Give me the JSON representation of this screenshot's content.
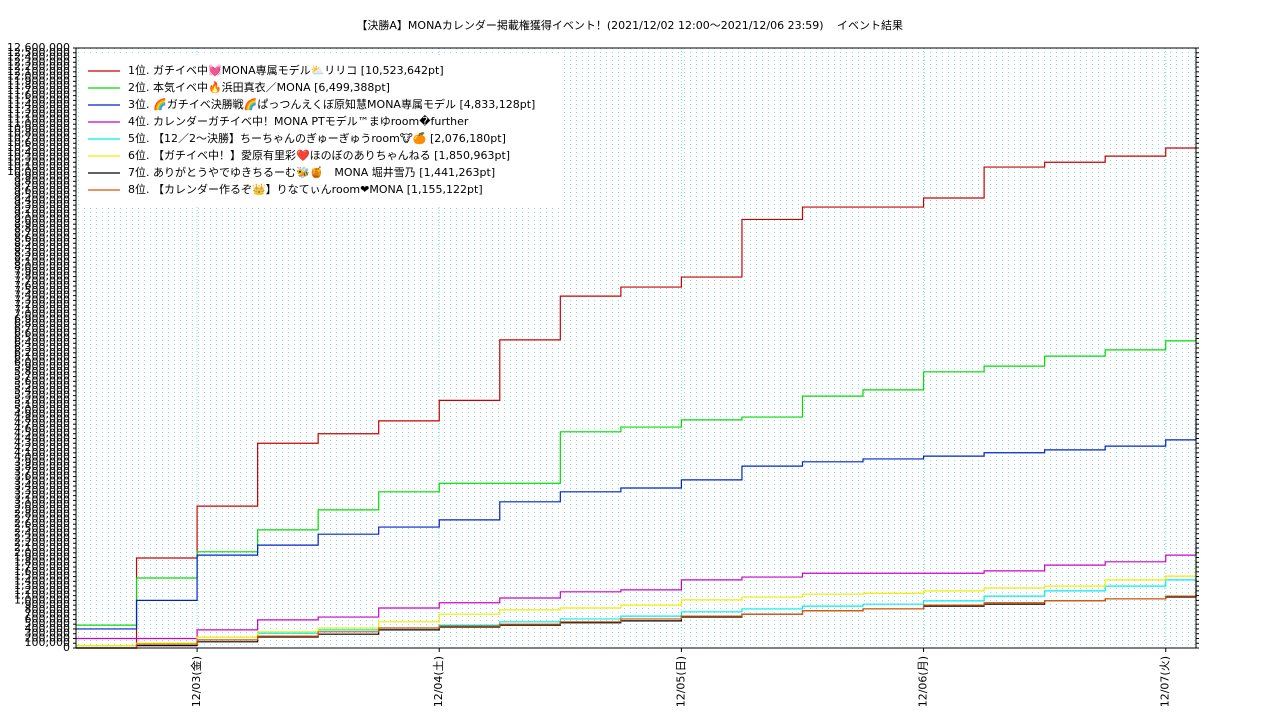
{
  "chart_data": {
    "type": "line",
    "step": true,
    "title": "【決勝A】MONAカレンダー掲載権獲得イベント！(2021/12/02 12:00〜2021/12/06 23:59)",
    "subtitle": "イベント結果",
    "x": [
      -0.5,
      -0.25,
      0,
      0.25,
      0.5,
      0.75,
      1,
      1.25,
      1.5,
      1.75,
      2,
      2.25,
      2.5,
      2.75,
      3,
      3.25,
      3.5,
      3.75,
      4,
      4.125
    ],
    "xlim": [
      -0.5,
      4.125
    ],
    "xticks": [
      {
        "value": 0,
        "label": "12/03(金)"
      },
      {
        "value": 1,
        "label": "12/04(土)"
      },
      {
        "value": 2,
        "label": "12/05(日)"
      },
      {
        "value": 3,
        "label": "12/06(月)"
      },
      {
        "value": 4,
        "label": "12/07(火)"
      }
    ],
    "ylim": [
      0,
      12600000
    ],
    "yticks": [
      0,
      {
        "value": 100000,
        "label": "100,000"
      },
      {
        "value": 200000,
        "label": "200,000"
      },
      {
        "value": 300000,
        "label": "300,000"
      },
      {
        "value": 400000,
        "label": "400,000"
      },
      {
        "value": 500000,
        "label": "500,000"
      },
      {
        "value": 600000,
        "label": "600,000"
      },
      {
        "value": 700000,
        "label": "700,000"
      },
      {
        "value": 800000,
        "label": "800,000"
      },
      {
        "value": 900000,
        "label": "900,000"
      },
      {
        "value": 1000000,
        "label": "1,000,000"
      },
      {
        "value": 1100000,
        "label": "1,100,000"
      },
      {
        "value": 1200000,
        "label": "1,200,000"
      },
      {
        "value": 1300000,
        "label": "1,300,000"
      },
      {
        "value": 1400000,
        "label": "1,400,000"
      },
      {
        "value": 1500000,
        "label": "1,500,000"
      },
      {
        "value": 1600000,
        "label": "1,600,000"
      },
      {
        "value": 1700000,
        "label": "1,700,000"
      },
      {
        "value": 1800000,
        "label": "1,800,000"
      },
      {
        "value": 1900000,
        "label": "1,900,000"
      },
      {
        "value": 2000000,
        "label": "2,000,000"
      },
      {
        "value": 2100000,
        "label": "2,100,000"
      },
      {
        "value": 2200000,
        "label": "2,200,000"
      },
      {
        "value": 2300000,
        "label": "2,300,000"
      },
      {
        "value": 2400000,
        "label": "2,400,000"
      },
      {
        "value": 2500000,
        "label": "2,500,000"
      },
      {
        "value": 2600000,
        "label": "2,600,000"
      },
      {
        "value": 2700000,
        "label": "2,700,000"
      },
      {
        "value": 2800000,
        "label": "2,800,000"
      },
      {
        "value": 2900000,
        "label": "2,900,000"
      },
      {
        "value": 3000000,
        "label": "3,000,000"
      },
      {
        "value": 3100000,
        "label": "3,100,000"
      },
      {
        "value": 3200000,
        "label": "3,200,000"
      },
      {
        "value": 3300000,
        "label": "3,300,000"
      },
      {
        "value": 3400000,
        "label": "3,400,000"
      },
      {
        "value": 3500000,
        "label": "3,500,000"
      },
      {
        "value": 3600000,
        "label": "3,600,000"
      },
      {
        "value": 3700000,
        "label": "3,700,000"
      },
      {
        "value": 3800000,
        "label": "3,800,000"
      },
      {
        "value": 3900000,
        "label": "3,900,000"
      },
      {
        "value": 4000000,
        "label": "4,000,000"
      },
      {
        "value": 4100000,
        "label": "4,100,000"
      },
      {
        "value": 4200000,
        "label": "4,200,000"
      },
      {
        "value": 4300000,
        "label": "4,300,000"
      },
      {
        "value": 4400000,
        "label": "4,400,000"
      },
      {
        "value": 4500000,
        "label": "4,500,000"
      },
      {
        "value": 4600000,
        "label": "4,600,000"
      },
      {
        "value": 4700000,
        "label": "4,700,000"
      },
      {
        "value": 4800000,
        "label": "4,800,000"
      },
      {
        "value": 4900000,
        "label": "4,900,000"
      },
      {
        "value": 5000000,
        "label": "5,000,000"
      },
      {
        "value": 5100000,
        "label": "5,100,000"
      },
      {
        "value": 5200000,
        "label": "5,200,000"
      },
      {
        "value": 5300000,
        "label": "5,300,000"
      },
      {
        "value": 5400000,
        "label": "5,400,000"
      },
      {
        "value": 5500000,
        "label": "5,500,000"
      },
      {
        "value": 5600000,
        "label": "5,600,000"
      },
      {
        "value": 5700000,
        "label": "5,700,000"
      },
      {
        "value": 5800000,
        "label": "5,800,000"
      },
      {
        "value": 5900000,
        "label": "5,900,000"
      },
      {
        "value": 6000000,
        "label": "6,000,000"
      },
      {
        "value": 6100000,
        "label": "6,100,000"
      },
      {
        "value": 6200000,
        "label": "6,200,000"
      },
      {
        "value": 6300000,
        "label": "6,300,000"
      },
      {
        "value": 6400000,
        "label": "6,400,000"
      },
      {
        "value": 6500000,
        "label": "6,500,000"
      },
      {
        "value": 6600000,
        "label": "6,600,000"
      },
      {
        "value": 6700000,
        "label": "6,700,000"
      },
      {
        "value": 6800000,
        "label": "6,800,000"
      },
      {
        "value": 6900000,
        "label": "6,900,000"
      },
      {
        "value": 7000000,
        "label": "7,000,000"
      },
      {
        "value": 7100000,
        "label": "7,100,000"
      },
      {
        "value": 7200000,
        "label": "7,200,000"
      },
      {
        "value": 7300000,
        "label": "7,300,000"
      },
      {
        "value": 7400000,
        "label": "7,400,000"
      },
      {
        "value": 7500000,
        "label": "7,500,000"
      },
      {
        "value": 7600000,
        "label": "7,600,000"
      },
      {
        "value": 7700000,
        "label": "7,700,000"
      },
      {
        "value": 7800000,
        "label": "7,800,000"
      },
      {
        "value": 7900000,
        "label": "7,900,000"
      },
      {
        "value": 8000000,
        "label": "8,000,000"
      },
      {
        "value": 8100000,
        "label": "8,100,000"
      },
      {
        "value": 8200000,
        "label": "8,200,000"
      },
      {
        "value": 8300000,
        "label": "8,300,000"
      },
      {
        "value": 8400000,
        "label": "8,400,000"
      },
      {
        "value": 8500000,
        "label": "8,500,000"
      },
      {
        "value": 8600000,
        "label": "8,600,000"
      },
      {
        "value": 8700000,
        "label": "8,700,000"
      },
      {
        "value": 8800000,
        "label": "8,800,000"
      },
      {
        "value": 8900000,
        "label": "8,900,000"
      },
      {
        "value": 9000000,
        "label": "9,000,000"
      },
      {
        "value": 9100000,
        "label": "9,100,000"
      },
      {
        "value": 9200000,
        "label": "9,200,000"
      },
      {
        "value": 9300000,
        "label": "9,300,000"
      },
      {
        "value": 9400000,
        "label": "9,400,000"
      },
      {
        "value": 9500000,
        "label": "9,500,000"
      },
      {
        "value": 9600000,
        "label": "9,600,000"
      },
      {
        "value": 9700000,
        "label": "9,700,000"
      },
      {
        "value": 9800000,
        "label": "9,800,000"
      },
      {
        "value": 9900000,
        "label": "9,900,000"
      },
      {
        "value": 10000000,
        "label": "10,000,000"
      },
      {
        "value": 10100000,
        "label": "10,100,000"
      },
      {
        "value": 10200000,
        "label": "10,200,000"
      },
      {
        "value": 10300000,
        "label": "10,300,000"
      },
      {
        "value": 10400000,
        "label": "10,400,000"
      },
      {
        "value": 10500000,
        "label": "10,500,000"
      },
      {
        "value": 10600000,
        "label": "10,600,000"
      },
      {
        "value": 10700000,
        "label": "10,700,000"
      },
      {
        "value": 10800000,
        "label": "10,800,000"
      },
      {
        "value": 10900000,
        "label": "10,900,000"
      },
      {
        "value": 11000000,
        "label": "11,000,000"
      },
      {
        "value": 11100000,
        "label": "11,100,000"
      },
      {
        "value": 11200000,
        "label": "11,200,000"
      },
      {
        "value": 11300000,
        "label": "11,300,000"
      },
      {
        "value": 11400000,
        "label": "11,400,000"
      },
      {
        "value": 11500000,
        "label": "11,500,000"
      },
      {
        "value": 11600000,
        "label": "11,600,000"
      },
      {
        "value": 11700000,
        "label": "11,700,000"
      },
      {
        "value": 11800000,
        "label": "11,800,000"
      },
      {
        "value": 11900000,
        "label": "11,900,000"
      },
      {
        "value": 12000000,
        "label": "12,000,000"
      },
      {
        "value": 12100000,
        "label": "12,100,000"
      },
      {
        "value": 12200000,
        "label": "12,200,000"
      },
      {
        "value": 12300000,
        "label": "12,300,000"
      },
      {
        "value": 12400000,
        "label": "12,400,000"
      },
      {
        "value": 12500000,
        "label": "12,500,000"
      },
      {
        "value": 12600000,
        "label": "12,600,000"
      }
    ],
    "grid": true,
    "legend": "upper-left",
    "series": [
      {
        "name": "1位. ガチイベ中💓MONA専属モデル⛅リリコ [10,523,642pt]",
        "color": "#cc0000",
        "values": [
          0,
          1890000,
          2980000,
          4300000,
          4500000,
          4770000,
          5200000,
          6470000,
          7390000,
          7580000,
          7790000,
          9000000,
          9260000,
          9260000,
          9450000,
          10100000,
          10200000,
          10330000,
          10500000,
          10523642
        ]
      },
      {
        "name": "2位. 本気イベ中🔥浜田真衣／MONA [6,499,388pt]",
        "color": "#00dd00",
        "values": [
          480000,
          1470000,
          2020000,
          2480000,
          2900000,
          3280000,
          3460000,
          3460000,
          4540000,
          4640000,
          4790000,
          4850000,
          5290000,
          5420000,
          5800000,
          5920000,
          6130000,
          6260000,
          6450000,
          6499388
        ]
      },
      {
        "name": "3位. 🌈ガチイベ決勝戦🌈ぱっつんえくぼ原知慧MONA専属モデル [4,833,128pt]",
        "color": "#0022cc",
        "values": [
          400000,
          1000000,
          1950000,
          2160000,
          2390000,
          2540000,
          2690000,
          3070000,
          3280000,
          3360000,
          3530000,
          3820000,
          3910000,
          3970000,
          4030000,
          4100000,
          4160000,
          4240000,
          4370000,
          4833128
        ]
      },
      {
        "name": "4位. カレンダーガチイベ中！MONA PTモデル™まゆroom�further",
        "color": "#cc00cc",
        "values": [
          200000,
          200000,
          380000,
          590000,
          650000,
          840000,
          950000,
          1050000,
          1180000,
          1220000,
          1430000,
          1490000,
          1570000,
          1570000,
          1570000,
          1620000,
          1740000,
          1810000,
          1950000,
          2172303
        ]
      },
      {
        "name": "5位. 【12／2〜決勝】ちーちゃんのぎゅーぎゅうroom🐮🍊 [2,076,180pt]",
        "color": "#00eeee",
        "values": [
          50000,
          100000,
          230000,
          310000,
          380000,
          420000,
          480000,
          550000,
          610000,
          670000,
          760000,
          820000,
          880000,
          920000,
          990000,
          1090000,
          1200000,
          1300000,
          1430000,
          2076180
        ]
      },
      {
        "name": "6位. 【ガチイベ中！】愛原有里彩❤️ほのぼのありちゃんねる [1,850,963pt]",
        "color": "#eeee00",
        "values": [
          50000,
          100000,
          230000,
          340000,
          420000,
          550000,
          710000,
          800000,
          840000,
          900000,
          1010000,
          1070000,
          1130000,
          1150000,
          1200000,
          1260000,
          1300000,
          1430000,
          1510000,
          1850963
        ]
      },
      {
        "name": "7位. ありがとうやでゆきちるーむ🐝🍯　MONA 堀井雪乃 [1,441,263pt]",
        "color": "#000000",
        "values": [
          0,
          50000,
          130000,
          230000,
          290000,
          380000,
          440000,
          480000,
          530000,
          570000,
          650000,
          710000,
          780000,
          820000,
          880000,
          920000,
          990000,
          1030000,
          1070000,
          1441263
        ]
      },
      {
        "name": "8位. 【カレンダー作るぞ👑】りなてぃんroom❤MONA [1,155,122pt]",
        "color": "#dd5500",
        "values": [
          0,
          80000,
          170000,
          250000,
          340000,
          420000,
          460000,
          500000,
          550000,
          610000,
          670000,
          710000,
          780000,
          820000,
          900000,
          950000,
          990000,
          1030000,
          1090000,
          1155122
        ]
      }
    ]
  }
}
